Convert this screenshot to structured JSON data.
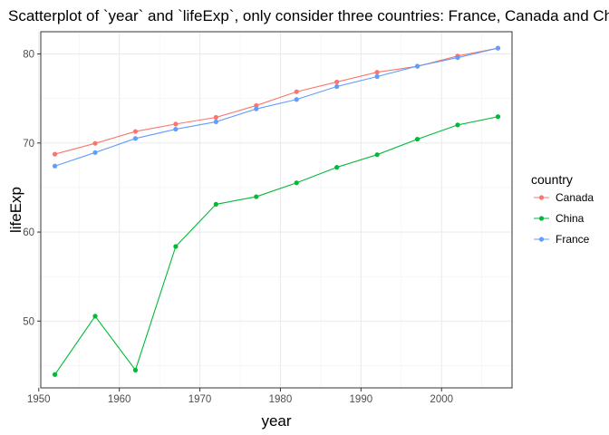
{
  "chart_data": {
    "type": "line",
    "title": "Scatterplot of `year` and `lifeExp`, only consider three countries: France, Canada and China",
    "xlabel": "year",
    "ylabel": "lifeExp",
    "xlim": [
      1950.25,
      2008.75
    ],
    "ylim": [
      42.5,
      82.5
    ],
    "x_ticks": [
      1950,
      1960,
      1970,
      1980,
      1990,
      2000
    ],
    "y_ticks": [
      50,
      60,
      70,
      80
    ],
    "grid": true,
    "legend": {
      "title": "country",
      "position": "right"
    },
    "x": [
      1952,
      1957,
      1962,
      1967,
      1972,
      1977,
      1982,
      1987,
      1992,
      1997,
      2002,
      2007
    ],
    "series": [
      {
        "name": "Canada",
        "color": "#F8766D",
        "values": [
          68.75,
          69.96,
          71.3,
          72.13,
          72.88,
          74.21,
          75.76,
          76.86,
          77.95,
          78.61,
          79.77,
          80.65
        ]
      },
      {
        "name": "China",
        "color": "#00BA38",
        "values": [
          44.0,
          50.55,
          44.5,
          58.38,
          63.12,
          63.97,
          65.53,
          67.27,
          68.69,
          70.43,
          72.03,
          72.96
        ]
      },
      {
        "name": "France",
        "color": "#619CFF",
        "values": [
          67.41,
          68.93,
          70.51,
          71.55,
          72.38,
          73.83,
          74.89,
          76.34,
          77.46,
          78.64,
          79.59,
          80.66
        ]
      }
    ]
  }
}
